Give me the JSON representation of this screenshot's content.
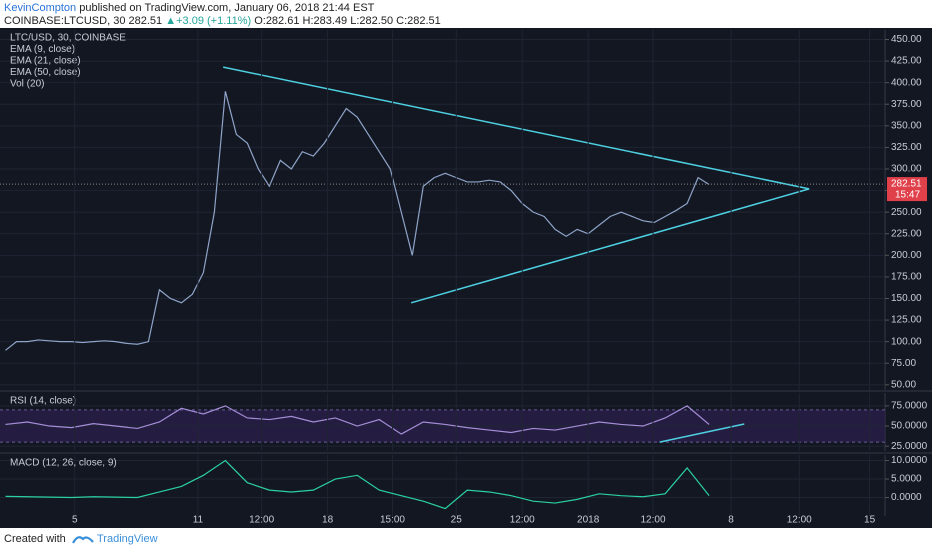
{
  "header": {
    "user": "KevinCompton",
    "published": "published on TradingView.com, January 06, 2018 21:44 EST",
    "symbol": "COINBASE:LTCUSD, 30",
    "last": "282.51",
    "arrow": "▲",
    "change": "+3.09 (+1.11%)",
    "open": "O:282.61",
    "high": "H:283.49",
    "low": "L:282.50",
    "close": "C:282.51"
  },
  "footer": {
    "created": "Created with",
    "brand": "TradingView"
  },
  "chart_data": [
    {
      "type": "line",
      "legend": [
        "LTC/USD, 30, COINBASE",
        "EMA (9, close)",
        "EMA (21, close)",
        "EMA (50, close)",
        "Vol (20)"
      ],
      "x": [
        0,
        1,
        2,
        3,
        4,
        5,
        6,
        7,
        8,
        9,
        10,
        11,
        12,
        13,
        14,
        15,
        16,
        17,
        18,
        19,
        20,
        21,
        22,
        23,
        24,
        25,
        26,
        27,
        28,
        29,
        30,
        31,
        32,
        33,
        34,
        35,
        36,
        37,
        38,
        39,
        40,
        41,
        42,
        43,
        44,
        45,
        46,
        47,
        48,
        49,
        50,
        51,
        52,
        53,
        54,
        55,
        56,
        57,
        58,
        59,
        60,
        61,
        62,
        63,
        64
      ],
      "series": [
        {
          "color": "#8ea4c8",
          "values": [
            90,
            100,
            100,
            102,
            101,
            100,
            100,
            99,
            100,
            101,
            100,
            98,
            97,
            100,
            160,
            150,
            145,
            155,
            180,
            250,
            390,
            340,
            330,
            300,
            280,
            310,
            300,
            320,
            315,
            330,
            350,
            370,
            360,
            340,
            320,
            300,
            250,
            200,
            280,
            290,
            295,
            290,
            285,
            285,
            287,
            285,
            275,
            260,
            250,
            245,
            230,
            222,
            230,
            225,
            235,
            245,
            250,
            245,
            240,
            238,
            245,
            252,
            260,
            290,
            282
          ]
        }
      ],
      "xlim": [
        -0.5,
        80
      ],
      "ylim": [
        44,
        461
      ],
      "yticks": [
        {
          "value": 50,
          "label": "50.00"
        },
        {
          "value": 75,
          "label": "75.00"
        },
        {
          "value": 100,
          "label": "100.00"
        },
        {
          "value": 125,
          "label": "125.00"
        },
        {
          "value": 150,
          "label": "150.00"
        },
        {
          "value": 175,
          "label": "175.00"
        },
        {
          "value": 200,
          "label": "200.00"
        },
        {
          "value": 225,
          "label": "225.00"
        },
        {
          "value": 250,
          "label": "250.00"
        },
        {
          "value": 275,
          "label": "275.00"
        },
        {
          "value": 300,
          "label": "300.00"
        },
        {
          "value": 325,
          "label": "325.00"
        },
        {
          "value": 350,
          "label": "350.00"
        },
        {
          "value": 375,
          "label": "375.00"
        },
        {
          "value": 400,
          "label": "400.00"
        },
        {
          "value": 425,
          "label": "425.00"
        },
        {
          "value": 450,
          "label": "450.00"
        }
      ],
      "last_price": {
        "value": 282.51,
        "label": "282.51"
      },
      "countdown": "15:47",
      "drawings": [
        {
          "x": [
            19.8,
            73.1
          ],
          "y": [
            418,
            277
          ],
          "color": "#4dd0e1"
        },
        {
          "x": [
            36.9,
            73.1
          ],
          "y": [
            145,
            277
          ],
          "color": "#4dd0e1"
        }
      ],
      "grid": true
    },
    {
      "type": "line",
      "legend": [
        "RSI (14, close)"
      ],
      "x": [
        0,
        2,
        4,
        6,
        8,
        10,
        12,
        14,
        16,
        18,
        20,
        22,
        24,
        26,
        28,
        30,
        32,
        34,
        36,
        38,
        40,
        42,
        44,
        46,
        48,
        50,
        52,
        54,
        56,
        58,
        60,
        62,
        64
      ],
      "series": [
        {
          "color": "#a58ed8",
          "values": [
            52,
            55,
            50,
            48,
            53,
            50,
            47,
            55,
            72,
            65,
            75,
            60,
            58,
            62,
            55,
            60,
            50,
            58,
            40,
            55,
            52,
            48,
            45,
            42,
            47,
            45,
            50,
            55,
            52,
            50,
            60,
            75,
            52
          ]
        }
      ],
      "xlim": [
        -0.5,
        80
      ],
      "ylim": [
        19,
        91
      ],
      "band": [
        30,
        70
      ],
      "yticks": [
        {
          "value": 25,
          "label": "25.0000"
        },
        {
          "value": 50,
          "label": "50.0000"
        },
        {
          "value": 75,
          "label": "75.0000"
        }
      ],
      "drawings": [
        {
          "x": [
            59.5,
            67.2
          ],
          "y": [
            30,
            52.5
          ],
          "color": "#4dd0e1"
        }
      ],
      "grid": true
    },
    {
      "type": "line",
      "legend": [
        "MACD (12, 26, close, 9)"
      ],
      "x": [
        0,
        2,
        4,
        6,
        8,
        10,
        12,
        14,
        16,
        18,
        20,
        22,
        24,
        26,
        28,
        30,
        32,
        34,
        36,
        38,
        40,
        42,
        44,
        46,
        48,
        50,
        52,
        54,
        56,
        58,
        60,
        62,
        64
      ],
      "series": [
        {
          "color": "#2bd1a0",
          "values": [
            0.3,
            0.2,
            0.1,
            0.0,
            0.2,
            0.1,
            0.0,
            1.5,
            3,
            6,
            10,
            4,
            2,
            1.5,
            2,
            5,
            6,
            2,
            0.5,
            -1,
            -3,
            2,
            1.5,
            0.5,
            -1,
            -1.5,
            -0.5,
            1,
            0.5,
            0.2,
            1,
            8,
            0.5
          ]
        }
      ],
      "xlim": [
        -0.5,
        80
      ],
      "ylim": [
        -5,
        11.5
      ],
      "yticks": [
        {
          "value": 0,
          "label": "0.0000"
        },
        {
          "value": 5,
          "label": "5.0000"
        },
        {
          "value": 10,
          "label": "10.0000"
        }
      ],
      "xticks": [
        {
          "value": 6.3,
          "label": "5"
        },
        {
          "value": 17.5,
          "label": "11"
        },
        {
          "value": 23.3,
          "label": "12:00"
        },
        {
          "value": 29.3,
          "label": "18"
        },
        {
          "value": 35.2,
          "label": "15:00"
        },
        {
          "value": 41.0,
          "label": "25"
        },
        {
          "value": 47.0,
          "label": "12:00"
        },
        {
          "value": 53.0,
          "label": "2018"
        },
        {
          "value": 58.9,
          "label": "12:00"
        },
        {
          "value": 66.0,
          "label": "8"
        },
        {
          "value": 72.2,
          "label": "12:00"
        },
        {
          "value": 78.6,
          "label": "15"
        }
      ],
      "grid": true
    }
  ]
}
